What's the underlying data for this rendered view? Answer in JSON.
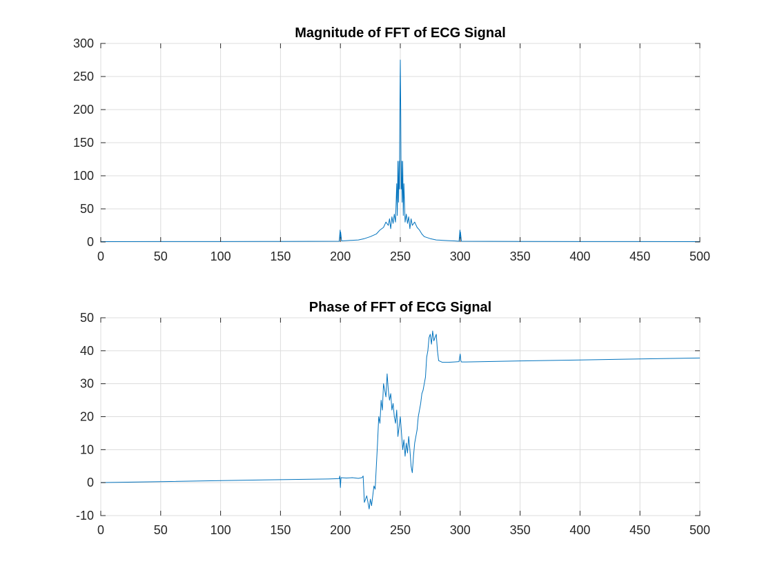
{
  "chart_data": [
    {
      "type": "line",
      "title": "Magnitude of FFT of ECG Signal",
      "xlim": [
        0,
        500
      ],
      "ylim": [
        0,
        300
      ],
      "xticks": [
        0,
        50,
        100,
        150,
        200,
        250,
        300,
        350,
        400,
        450,
        500
      ],
      "yticks": [
        0,
        50,
        100,
        150,
        200,
        250,
        300
      ],
      "grid": true,
      "color": "#0072BD",
      "series": [
        {
          "x": [
            0,
            50,
            100,
            150,
            199,
            199.8,
            200,
            200.2,
            201,
            205,
            210,
            215,
            220,
            225,
            230,
            233,
            236,
            238,
            240,
            241,
            242,
            243,
            244,
            245,
            246,
            247,
            247.5,
            248,
            248.5,
            249,
            249.3,
            249.6,
            250,
            250.4,
            250.7,
            251,
            251.5,
            252,
            252.5,
            253,
            254,
            255,
            256,
            257,
            258,
            259,
            260,
            262,
            264,
            266,
            268,
            270,
            275,
            280,
            285,
            290,
            295,
            299,
            299.8,
            300,
            300.2,
            301,
            350,
            400,
            450,
            500
          ],
          "y": [
            0.5,
            0.6,
            0.7,
            0.8,
            1,
            18,
            5,
            15,
            1.5,
            2,
            2.5,
            3,
            5,
            8,
            12,
            18,
            22,
            30,
            25,
            35,
            20,
            38,
            28,
            42,
            30,
            88,
            40,
            122,
            60,
            122,
            80,
            190,
            275,
            190,
            80,
            122,
            60,
            122,
            40,
            88,
            30,
            42,
            28,
            38,
            20,
            35,
            25,
            30,
            22,
            18,
            12,
            8,
            5,
            3,
            2.5,
            2,
            1.5,
            1,
            18,
            5,
            15,
            1,
            0.8,
            0.7,
            0.6,
            0.5
          ]
        }
      ]
    },
    {
      "type": "line",
      "title": "Phase of FFT of ECG Signal",
      "xlim": [
        0,
        500
      ],
      "ylim": [
        -10,
        50
      ],
      "xticks": [
        0,
        50,
        100,
        150,
        200,
        250,
        300,
        350,
        400,
        450,
        500
      ],
      "yticks": [
        -10,
        0,
        10,
        20,
        30,
        40,
        50
      ],
      "grid": true,
      "color": "#0072BD",
      "series": [
        {
          "x": [
            0,
            50,
            100,
            150,
            190,
            199,
            199.5,
            200,
            200.5,
            205,
            210,
            215,
            218,
            219,
            220,
            222,
            224,
            225,
            226,
            228,
            229,
            230,
            231,
            232,
            233,
            234,
            235,
            236,
            237,
            238,
            239,
            240,
            241,
            242,
            243,
            244,
            245,
            246,
            247,
            248,
            249,
            250,
            251,
            252,
            253,
            254,
            255,
            256,
            257,
            258,
            259,
            260,
            261,
            262,
            263,
            264,
            265,
            266,
            267,
            268,
            269,
            270,
            271,
            272,
            273,
            274,
            275,
            276,
            277,
            278,
            279,
            280,
            281,
            282,
            285,
            290,
            295,
            299,
            300,
            300.5,
            301,
            305,
            320,
            350,
            400,
            450,
            500
          ],
          "y": [
            0,
            0.3,
            0.6,
            0.9,
            1.1,
            1.2,
            2,
            -1.5,
            1.5,
            1.4,
            1.5,
            1.3,
            1.5,
            2,
            -6,
            -4,
            -8,
            -5,
            -7,
            -1,
            -2,
            5,
            12,
            20,
            18,
            25,
            22,
            30,
            28,
            26,
            33,
            28,
            25,
            27,
            22,
            24,
            20,
            18,
            22,
            14,
            17,
            20,
            15,
            10,
            13,
            8,
            12,
            9,
            14,
            10,
            5,
            3,
            8,
            12,
            14,
            16,
            20,
            22,
            24,
            27,
            28,
            30,
            32,
            38,
            40,
            44,
            45,
            42,
            46,
            43,
            44,
            45,
            40,
            37,
            36.5,
            36.5,
            36.6,
            36.7,
            39,
            37,
            36.6,
            36.6,
            36.7,
            36.9,
            37.2,
            37.5,
            37.8
          ]
        }
      ]
    }
  ]
}
